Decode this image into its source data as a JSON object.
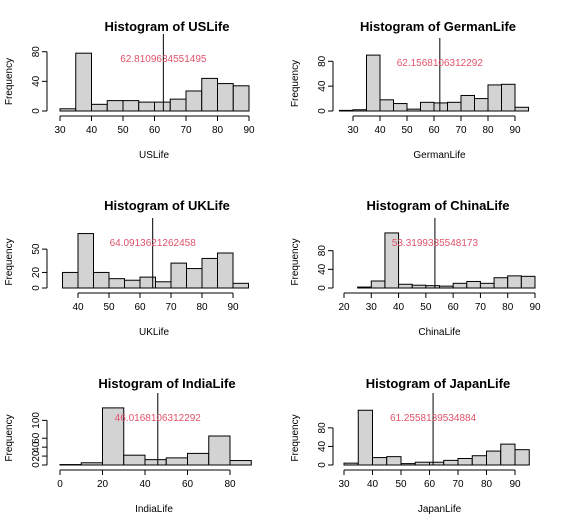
{
  "style": {
    "bar_fill": "#d3d3d3",
    "bar_stroke": "#000000",
    "mean_line": "#000000",
    "mean_label": "#df536b"
  },
  "chart_data": [
    {
      "type": "bar",
      "title": "Histogram of USLife",
      "xlabel": "USLife",
      "ylabel": "Frequency",
      "bin_edges": [
        30,
        35,
        40,
        45,
        50,
        55,
        60,
        65,
        70,
        75,
        80,
        85,
        90
      ],
      "values": [
        3,
        78,
        9,
        14,
        14,
        12,
        12,
        16,
        27,
        44,
        37,
        34
      ],
      "xticks": [
        30,
        40,
        50,
        60,
        70,
        80,
        90
      ],
      "yticks": [
        0,
        40,
        80
      ],
      "xlim": [
        30,
        90
      ],
      "ylim": [
        0,
        85
      ],
      "mean": 62.8109634551495,
      "mean_text": "62.8109634551495"
    },
    {
      "type": "bar",
      "title": "Histogram of GermanLife",
      "xlabel": "GermanLife",
      "ylabel": "Frequency",
      "bin_edges": [
        25,
        30,
        35,
        40,
        45,
        50,
        55,
        60,
        65,
        70,
        75,
        80,
        85,
        90,
        95
      ],
      "values": [
        1,
        2,
        90,
        18,
        12,
        3,
        14,
        13,
        14,
        25,
        20,
        42,
        43,
        6
      ],
      "xticks": [
        30,
        40,
        50,
        60,
        70,
        80,
        90
      ],
      "yticks": [
        0,
        40,
        80
      ],
      "xlim": [
        25,
        95
      ],
      "ylim": [
        0,
        95
      ],
      "mean": 62.1568106312292,
      "mean_text": "62.1568106312292"
    },
    {
      "type": "bar",
      "title": "Histogram of UKLife",
      "xlabel": "UKLife",
      "ylabel": "Frequency",
      "bin_edges": [
        35,
        40,
        45,
        50,
        55,
        60,
        65,
        70,
        75,
        80,
        85,
        90,
        95
      ],
      "values": [
        20,
        70,
        20,
        12,
        10,
        14,
        8,
        32,
        25,
        38,
        45,
        6
      ],
      "xticks": [
        40,
        50,
        60,
        70,
        80,
        90
      ],
      "yticks": [
        0,
        20,
        50
      ],
      "xlim": [
        35,
        95
      ],
      "ylim": [
        0,
        72
      ],
      "mean": 64.0913621262458,
      "mean_text": "64.0913621262458"
    },
    {
      "type": "bar",
      "title": "Histogram of ChinaLife",
      "xlabel": "ChinaLife",
      "ylabel": "Frequency",
      "bin_edges": [
        25,
        30,
        35,
        40,
        45,
        50,
        55,
        60,
        65,
        70,
        75,
        80,
        85,
        90
      ],
      "values": [
        2,
        15,
        118,
        8,
        6,
        5,
        4,
        10,
        14,
        10,
        22,
        26,
        25
      ],
      "xticks": [
        20,
        30,
        40,
        50,
        60,
        70,
        80,
        90
      ],
      "yticks": [
        0,
        40,
        80
      ],
      "xlim": [
        25,
        90
      ],
      "ylim": [
        0,
        120
      ],
      "mean": 53.3199335548173,
      "mean_text": "53.3199335548173"
    },
    {
      "type": "bar",
      "title": "Histogram of IndiaLife",
      "xlabel": "IndiaLife",
      "ylabel": "Frequency",
      "bin_edges": [
        0,
        10,
        20,
        30,
        40,
        50,
        60,
        70,
        80,
        90
      ],
      "values": [
        1,
        5,
        128,
        22,
        12,
        16,
        26,
        65,
        10
      ],
      "xticks": [
        0,
        20,
        40,
        60,
        80
      ],
      "yticks": [
        0,
        20,
        40,
        60,
        100
      ],
      "xlim": [
        0,
        90
      ],
      "ylim": [
        0,
        130
      ],
      "mean": 46.0168106312292,
      "mean_text": "46.0168106312292"
    },
    {
      "type": "bar",
      "title": "Histogram of JapanLife",
      "xlabel": "JapanLife",
      "ylabel": "Frequency",
      "bin_edges": [
        30,
        35,
        40,
        45,
        50,
        55,
        60,
        65,
        70,
        75,
        80,
        85,
        90,
        95
      ],
      "values": [
        4,
        118,
        16,
        18,
        3,
        6,
        6,
        10,
        14,
        20,
        30,
        45,
        33
      ],
      "xticks": [
        30,
        40,
        50,
        60,
        70,
        80,
        90
      ],
      "yticks": [
        0,
        40,
        80
      ],
      "xlim": [
        30,
        95
      ],
      "ylim": [
        0,
        125
      ],
      "mean": 61.2558139534884,
      "mean_text": "61.2558139534884"
    }
  ]
}
